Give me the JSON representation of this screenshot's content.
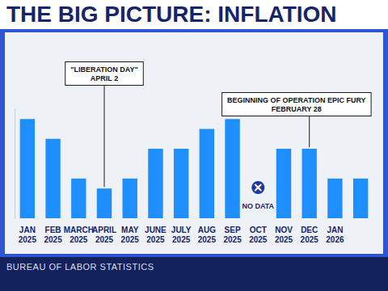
{
  "chart_data": {
    "type": "bar",
    "title": "THE BIG PICTURE: INFLATION",
    "source": "BUREAU OF LABOR STATISTICS",
    "categories": [
      "JAN\n2025",
      "FEB\n2025",
      "MARCH\n2025",
      "APRIL\n2025",
      "MAY\n2025",
      "JUNE\n2025",
      "JULY\n2025",
      "AUG\n2025",
      "SEP\n2025",
      "OCT\n2025",
      "NOV\n2025",
      "DEC\n2025",
      "JAN\n2026",
      null
    ],
    "values": [
      3.0,
      2.8,
      2.4,
      2.3,
      2.4,
      2.7,
      2.7,
      2.9,
      3.0,
      null,
      2.7,
      2.7,
      2.4,
      2.4
    ],
    "color": "#1f8fff",
    "ylim": [
      2,
      3.1
    ],
    "grid": false,
    "tick_labels": "x",
    "annotations": [
      {
        "text": "\"LIBERATION DAY\"\nAPRIL 2",
        "category": "APRIL\n2025"
      },
      {
        "text": "BEGINNING OF OPERATION EPIC FURY\nFEBRUARY 28",
        "category": "DEC\n2025"
      }
    ],
    "no_data": {
      "text": "NO DATA",
      "category": "OCT\n2025"
    }
  }
}
